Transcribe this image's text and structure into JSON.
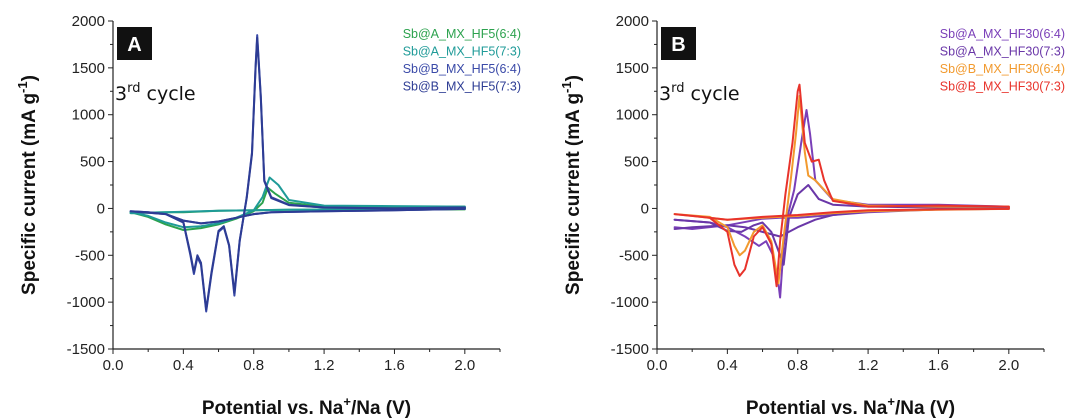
{
  "chart_data": [
    {
      "type": "line",
      "panel_label": "A",
      "annotation": {
        "prefix": "3",
        "superscript": "rd",
        "suffix": " cycle"
      },
      "xlabel": {
        "main": "Potential vs. Na",
        "sup": "+",
        "rest": "/Na (V)"
      },
      "ylabel": {
        "main": "Specific current (mA g",
        "sup": "-1",
        "rest": ")"
      },
      "xlim": [
        0.0,
        2.2
      ],
      "ylim": [
        -1500,
        2000
      ],
      "xticks": [
        "0.0",
        "0.4",
        "0.8",
        "1.2",
        "1.6",
        "2.0"
      ],
      "yticks": [
        "-1500",
        "-1000",
        "-500",
        "0",
        "500",
        "1000",
        "1500",
        "2000"
      ],
      "legend_position": "top-right",
      "series": [
        {
          "name": "Sb@A_MX_HF5(6:4)",
          "color": "#2ca24e",
          "x": [
            0.1,
            0.2,
            0.3,
            0.4,
            0.5,
            0.6,
            0.7,
            0.8,
            0.85,
            0.88,
            0.92,
            1.0,
            1.2,
            1.6,
            2.0,
            2.0,
            1.5,
            1.0,
            0.8,
            0.6,
            0.4,
            0.3,
            0.2,
            0.1
          ],
          "y": [
            -40,
            -90,
            -170,
            -230,
            -210,
            -170,
            -110,
            -30,
            60,
            220,
            160,
            60,
            20,
            20,
            20,
            -10,
            -15,
            -15,
            -20,
            -25,
            -40,
            -40,
            -45,
            -50
          ]
        },
        {
          "name": "Sb@A_MX_HF5(7:3)",
          "color": "#1f9b98",
          "x": [
            0.1,
            0.2,
            0.3,
            0.4,
            0.5,
            0.6,
            0.7,
            0.8,
            0.85,
            0.89,
            0.94,
            1.0,
            1.2,
            1.6,
            2.0,
            2.0,
            1.5,
            1.0,
            0.8,
            0.6,
            0.4,
            0.3,
            0.2,
            0.1
          ],
          "y": [
            -40,
            -80,
            -150,
            -200,
            -190,
            -160,
            -100,
            -20,
            120,
            330,
            250,
            90,
            30,
            25,
            20,
            -5,
            -10,
            -15,
            -20,
            -25,
            -35,
            -40,
            -45,
            -50
          ]
        },
        {
          "name": "Sb@B_MX_HF5(6:4)",
          "color": "#3a4aa8",
          "x": [
            0.1,
            0.3,
            0.4,
            0.44,
            0.46,
            0.48,
            0.5,
            0.53,
            0.56,
            0.6,
            0.63,
            0.66,
            0.69,
            0.72,
            0.76,
            0.79,
            0.81,
            0.82,
            0.84,
            0.86,
            0.9,
            1.0,
            1.2,
            1.6,
            2.0,
            2.0,
            1.6,
            1.2,
            0.9,
            0.8,
            0.7,
            0.6,
            0.5,
            0.4,
            0.3,
            0.2,
            0.1
          ],
          "y": [
            -30,
            -60,
            -150,
            -500,
            -700,
            -520,
            -600,
            -1100,
            -700,
            -250,
            -200,
            -400,
            -930,
            -350,
            120,
            600,
            1500,
            1850,
            1200,
            300,
            120,
            40,
            10,
            0,
            10,
            -5,
            -20,
            -30,
            -40,
            -60,
            -100,
            -140,
            -160,
            -130,
            -60,
            -40,
            -30
          ]
        },
        {
          "name": "Sb@B_MX_HF5(7:3)",
          "color": "#2d3c94",
          "x": [
            0.1,
            0.3,
            0.4,
            0.44,
            0.46,
            0.48,
            0.5,
            0.53,
            0.56,
            0.6,
            0.63,
            0.66,
            0.69,
            0.72,
            0.76,
            0.79,
            0.81,
            0.82,
            0.84,
            0.86,
            0.9,
            1.0,
            1.2,
            1.6,
            2.0,
            2.0,
            1.6,
            1.2,
            0.9,
            0.8,
            0.7,
            0.6,
            0.5,
            0.4,
            0.3,
            0.2,
            0.1
          ],
          "y": [
            -30,
            -60,
            -150,
            -480,
            -680,
            -500,
            -580,
            -1080,
            -680,
            -240,
            -190,
            -390,
            -900,
            -340,
            110,
            580,
            1480,
            1820,
            1180,
            290,
            110,
            35,
            10,
            0,
            10,
            -5,
            -20,
            -30,
            -40,
            -60,
            -100,
            -140,
            -160,
            -130,
            -60,
            -40,
            -30
          ]
        }
      ]
    },
    {
      "type": "line",
      "panel_label": "B",
      "annotation": {
        "prefix": "3",
        "superscript": "rd",
        "suffix": " cycle"
      },
      "xlabel": {
        "main": "Potential vs. Na",
        "sup": "+",
        "rest": "/Na (V)"
      },
      "ylabel": {
        "main": "Specific current (mA g",
        "sup": "-1",
        "rest": ")"
      },
      "xlim": [
        0.0,
        2.2
      ],
      "ylim": [
        -1500,
        2000
      ],
      "xticks": [
        "0.0",
        "0.4",
        "0.8",
        "1.2",
        "1.6",
        "2.0"
      ],
      "yticks": [
        "-1500",
        "-1000",
        "-500",
        "0",
        "500",
        "1000",
        "1500",
        "2000"
      ],
      "legend_position": "top-right",
      "series": [
        {
          "name": "Sb@A_MX_HF30(6:4)",
          "color": "#7a3fb8",
          "x": [
            0.1,
            0.3,
            0.4,
            0.5,
            0.58,
            0.62,
            0.66,
            0.69,
            0.7,
            0.72,
            0.74,
            0.78,
            0.82,
            0.85,
            0.87,
            0.9,
            1.0,
            1.2,
            1.6,
            2.0,
            2.0,
            1.6,
            1.2,
            1.0,
            0.8,
            0.7,
            0.6,
            0.4,
            0.2,
            0.1
          ],
          "y": [
            -120,
            -150,
            -200,
            -300,
            -400,
            -350,
            -500,
            -800,
            -950,
            -400,
            -100,
            200,
            700,
            1050,
            800,
            300,
            90,
            40,
            40,
            20,
            0,
            -10,
            -40,
            -70,
            -100,
            -100,
            -110,
            -180,
            -220,
            -200
          ]
        },
        {
          "name": "Sb@A_MX_HF30(7:3)",
          "color": "#6a37a8",
          "x": [
            0.1,
            0.3,
            0.4,
            0.48,
            0.55,
            0.6,
            0.65,
            0.7,
            0.72,
            0.75,
            0.8,
            0.86,
            0.92,
            1.0,
            1.2,
            1.6,
            2.0,
            2.0,
            1.6,
            1.2,
            1.0,
            0.9,
            0.8,
            0.7,
            0.6,
            0.5,
            0.4,
            0.2,
            0.1
          ],
          "y": [
            -120,
            -150,
            -240,
            -250,
            -180,
            -150,
            -250,
            -500,
            -600,
            -100,
            150,
            250,
            100,
            40,
            20,
            10,
            10,
            -5,
            -10,
            -30,
            -70,
            -120,
            -200,
            -300,
            -250,
            -200,
            -180,
            -200,
            -220
          ]
        },
        {
          "name": "Sb@B_MX_HF30(6:4)",
          "color": "#f29a2e",
          "x": [
            0.1,
            0.3,
            0.4,
            0.44,
            0.47,
            0.5,
            0.55,
            0.6,
            0.65,
            0.69,
            0.72,
            0.76,
            0.79,
            0.81,
            0.84,
            0.86,
            0.9,
            1.0,
            1.2,
            1.6,
            2.0,
            2.0,
            1.6,
            1.2,
            1.0,
            0.8,
            0.6,
            0.4,
            0.2,
            0.1
          ],
          "y": [
            -60,
            -90,
            -200,
            -400,
            -500,
            -450,
            -250,
            -180,
            -350,
            -800,
            -300,
            300,
            800,
            1200,
            600,
            350,
            300,
            100,
            30,
            20,
            20,
            -5,
            -15,
            -30,
            -50,
            -80,
            -100,
            -120,
            -80,
            -60
          ]
        },
        {
          "name": "Sb@B_MX_HF30(7:3)",
          "color": "#e8332b",
          "x": [
            0.1,
            0.3,
            0.4,
            0.44,
            0.47,
            0.5,
            0.55,
            0.6,
            0.65,
            0.68,
            0.7,
            0.73,
            0.77,
            0.8,
            0.81,
            0.84,
            0.88,
            0.92,
            0.95,
            1.0,
            1.2,
            1.6,
            2.0,
            2.0,
            1.6,
            1.2,
            1.0,
            0.8,
            0.6,
            0.4,
            0.2,
            0.1
          ],
          "y": [
            -60,
            -100,
            -250,
            -600,
            -720,
            -650,
            -300,
            -200,
            -380,
            -830,
            -350,
            150,
            700,
            1250,
            1320,
            700,
            500,
            520,
            300,
            80,
            20,
            30,
            20,
            -5,
            -10,
            -20,
            -40,
            -70,
            -90,
            -120,
            -80,
            -60
          ]
        }
      ]
    }
  ]
}
